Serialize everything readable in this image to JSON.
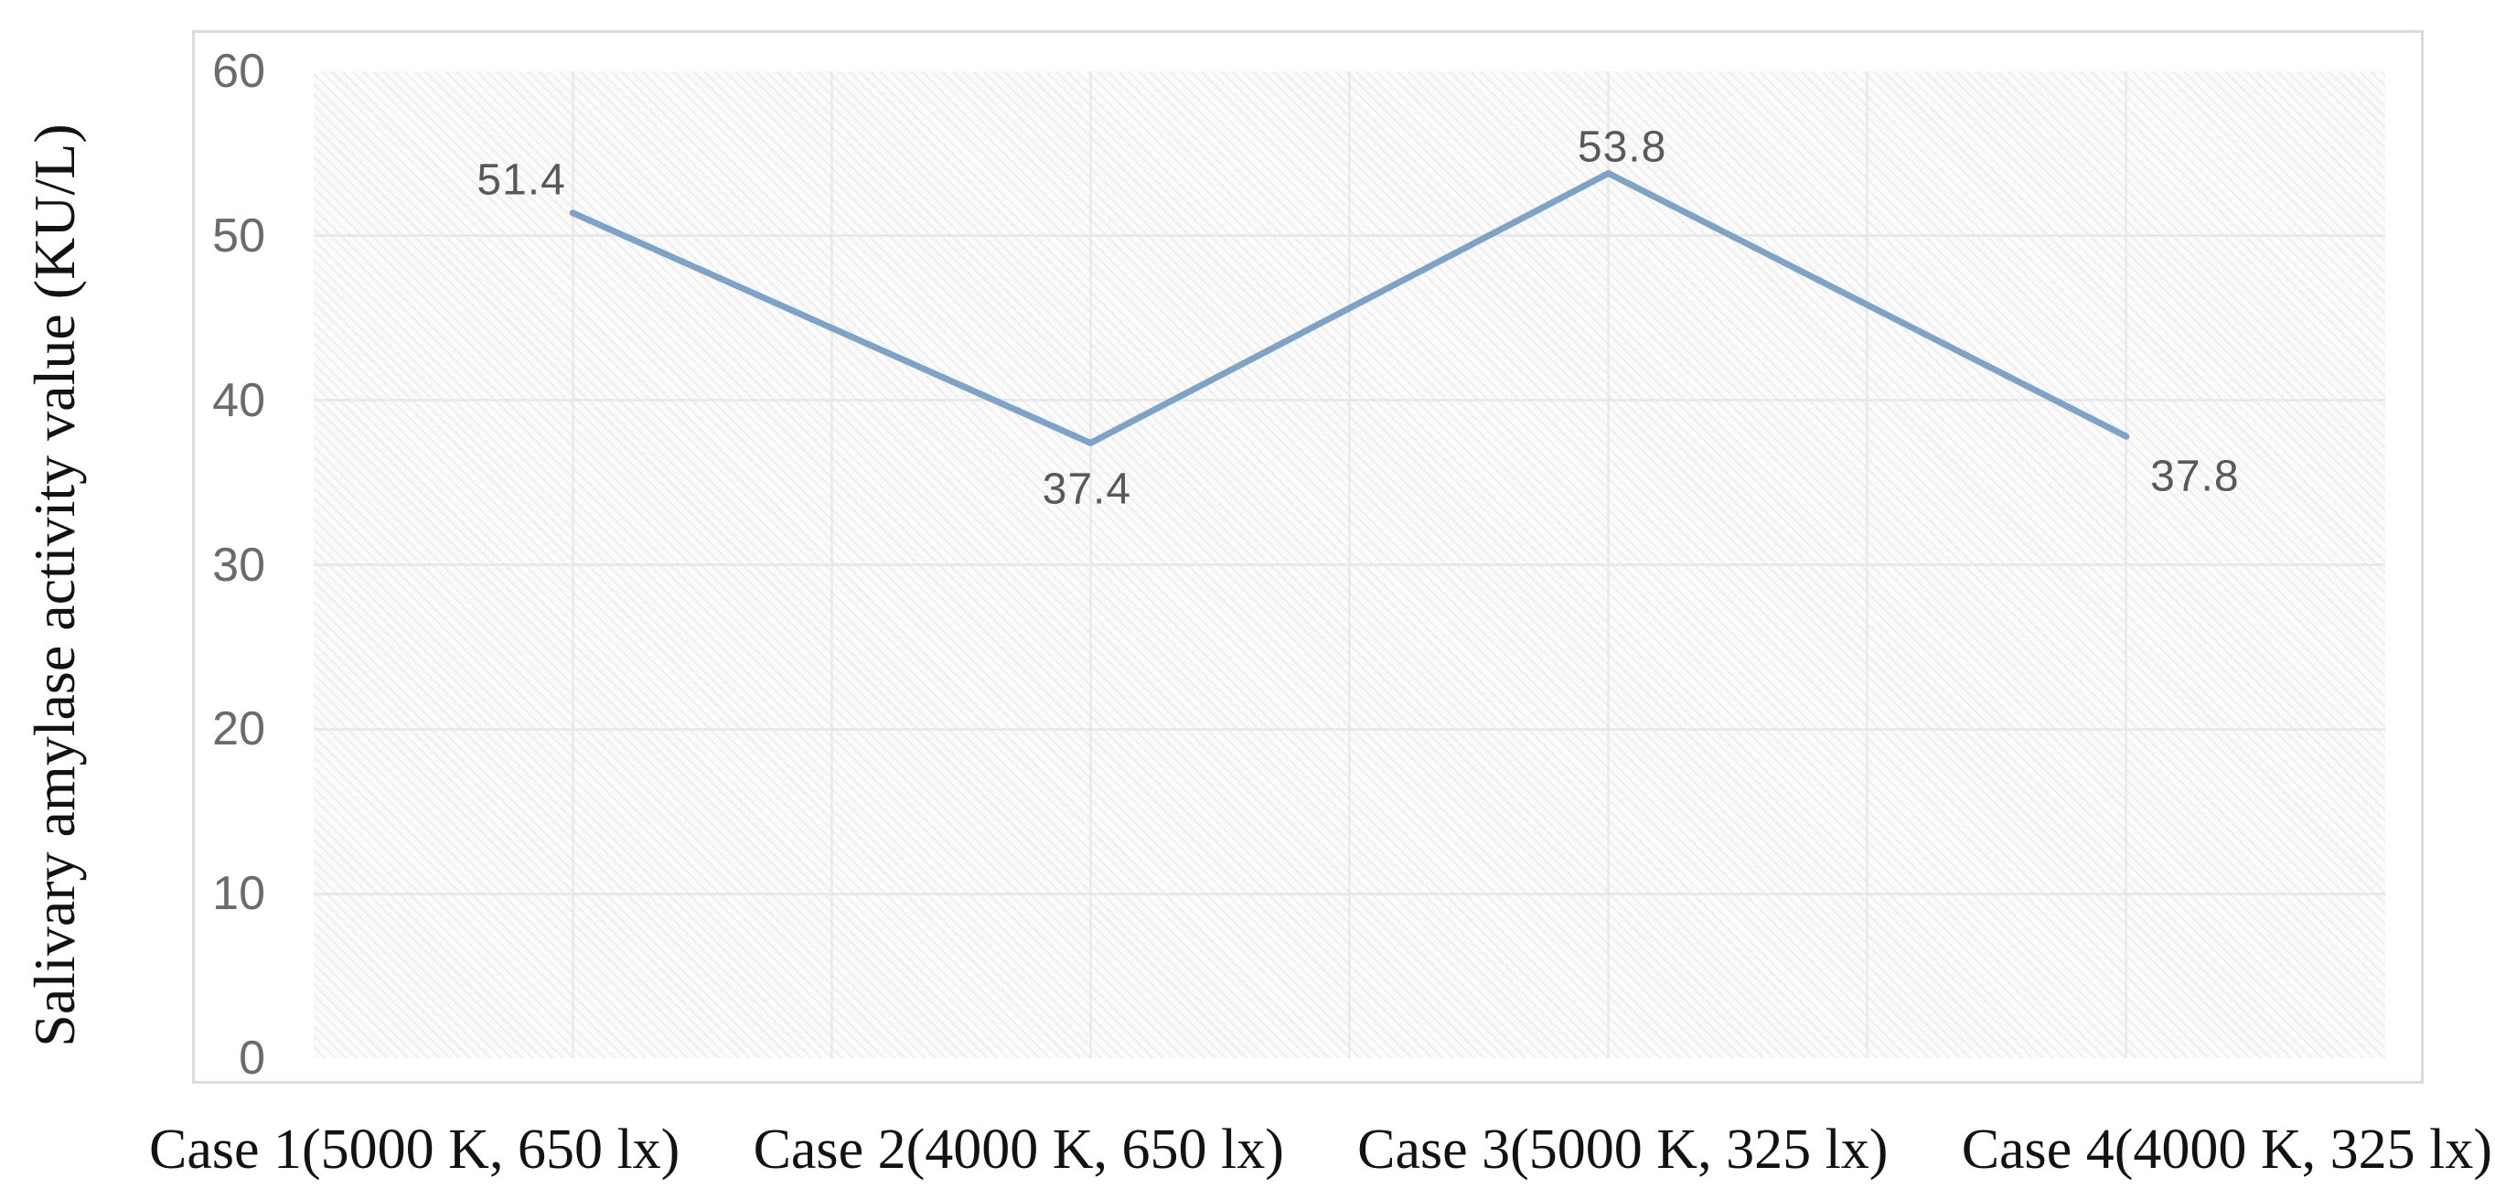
{
  "chart_data": {
    "type": "line",
    "title": "",
    "categories": [
      "Case 1(5000 K, 650 lx)",
      "Case 2(4000 K, 650 lx)",
      "Case 3(5000 K, 325 lx)",
      "Case 4(4000 K, 325 lx)"
    ],
    "series": [
      {
        "name": "Salivary amylase activity value",
        "values": [
          51.4,
          37.4,
          53.8,
          37.8
        ]
      }
    ],
    "data_labels": [
      "51.4",
      "37.4",
      "53.8",
      "37.8"
    ],
    "xlabel": "",
    "ylabel": "Salivary amylase activity value (KU/L)",
    "ylim": [
      0,
      60
    ],
    "ytick_step": 10,
    "yticks": [
      "0",
      "10",
      "20",
      "30",
      "40",
      "50",
      "60"
    ],
    "grid": "on",
    "legend": "none",
    "plot_area_fill": "diagonal-hatch",
    "colors": {
      "line": "#7fa3c6",
      "data_label": "#595959",
      "tick_label": "#6b6b6b",
      "axis_text": "#121212",
      "frame_border": "#dbdbdb",
      "gridline": "#e4e4e4"
    }
  }
}
